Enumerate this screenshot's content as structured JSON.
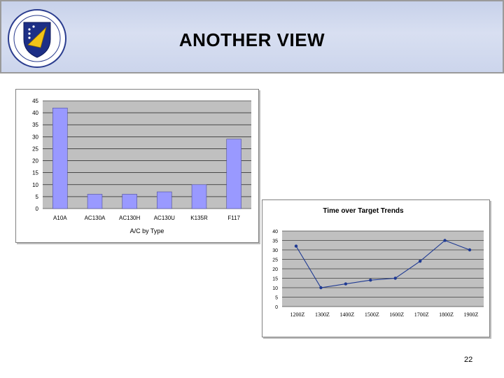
{
  "header": {
    "title": "ANOTHER VIEW",
    "logo_icon": "air-force-shield-emblem-icon"
  },
  "colors": {
    "header_bg": "#cdd6ee",
    "plot_bg": "#c0c0c0",
    "bar_fill": "#9999ff",
    "line_color": "#1f3a93"
  },
  "chart_data": [
    {
      "type": "bar",
      "categories": [
        "A10A",
        "AC130A",
        "AC130H",
        "AC130U",
        "K135R",
        "F117"
      ],
      "values": [
        42,
        6,
        6,
        7,
        10,
        29
      ],
      "title": "",
      "xlabel": "A/C by Type",
      "ylabel": "",
      "ylim": [
        0,
        45
      ],
      "yticks": [
        0,
        5,
        10,
        15,
        20,
        25,
        30,
        35,
        40,
        45
      ],
      "grid": true
    },
    {
      "type": "line",
      "title": "Time over Target Trends",
      "categories": [
        "1200Z",
        "1300Z",
        "1400Z",
        "1500Z",
        "1600Z",
        "1700Z",
        "1800Z",
        "1900Z"
      ],
      "values": [
        32,
        10,
        12,
        14,
        15,
        24,
        35,
        30
      ],
      "xlabel": "",
      "ylabel": "",
      "ylim": [
        0,
        40
      ],
      "yticks": [
        0,
        5,
        10,
        15,
        20,
        25,
        30,
        35,
        40
      ],
      "grid": true
    }
  ],
  "page_number": "22"
}
